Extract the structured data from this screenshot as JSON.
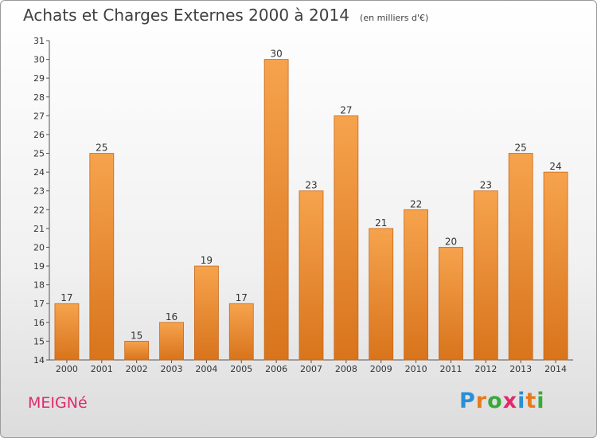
{
  "header": {
    "title": "Achats et Charges Externes 2000 à 2014",
    "subtitle": "(en milliers d'€)"
  },
  "footer": {
    "commune": "MEIGNé",
    "logo": {
      "text": "Proxiti",
      "letters": [
        "P",
        "r",
        "o",
        "x",
        "i",
        "t",
        "i"
      ],
      "colors": [
        "#2a8fd6",
        "#e77a1b",
        "#3aa83a",
        "#e0296b",
        "#2a8fd6",
        "#e77a1b",
        "#3aa83a"
      ]
    }
  },
  "chart_data": {
    "type": "bar",
    "categories": [
      "2000",
      "2001",
      "2002",
      "2003",
      "2004",
      "2005",
      "2006",
      "2007",
      "2008",
      "2009",
      "2010",
      "2011",
      "2012",
      "2013",
      "2014"
    ],
    "values": [
      17,
      25,
      15,
      16,
      19,
      17,
      30,
      23,
      27,
      21,
      22,
      20,
      23,
      25,
      24
    ],
    "ylim": [
      14,
      31
    ],
    "yticks": [
      14,
      15,
      16,
      17,
      18,
      19,
      20,
      21,
      22,
      23,
      24,
      25,
      26,
      27,
      28,
      29,
      30,
      31
    ],
    "grid": false,
    "bar_color_top": "#f6a34d",
    "bar_color_bottom": "#d8741c",
    "bar_edge": "#c8671a"
  }
}
